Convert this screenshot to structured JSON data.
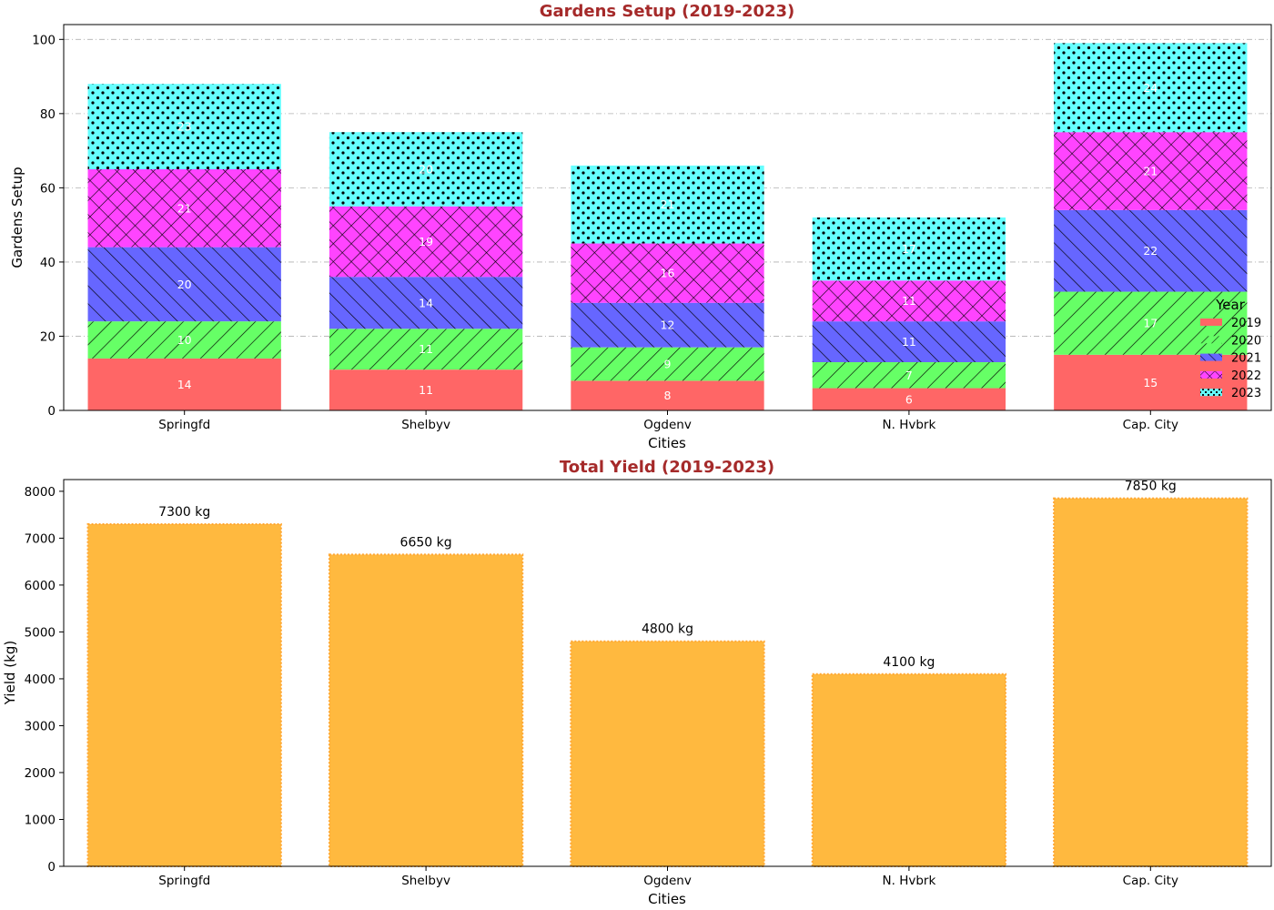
{
  "chart_data": [
    {
      "type": "bar",
      "stacked": true,
      "title": "Gardens Setup (2019-2023)",
      "xlabel": "Cities",
      "ylabel": "Gardens Setup",
      "ylim": [
        0,
        104
      ],
      "yticks": [
        0,
        20,
        40,
        60,
        80,
        100
      ],
      "grid": "y-dashdot",
      "legend": {
        "title": "Year",
        "placement": "right"
      },
      "categories": [
        "Springfd",
        "Shelbyv",
        "Ogdenv",
        "N. Hvbrk",
        "Cap. City"
      ],
      "series": [
        {
          "name": "2019",
          "color": "#ff6666",
          "hatch": "none",
          "values": [
            14,
            11,
            8,
            6,
            15
          ]
        },
        {
          "name": "2020",
          "color": "#66ff66",
          "hatch": "forward-diagonal",
          "values": [
            10,
            11,
            9,
            7,
            17
          ]
        },
        {
          "name": "2021",
          "color": "#6666ff",
          "hatch": "back-diagonal",
          "values": [
            20,
            14,
            12,
            11,
            22
          ]
        },
        {
          "name": "2022",
          "color": "#ff44ff",
          "hatch": "cross",
          "values": [
            21,
            19,
            16,
            11,
            21
          ]
        },
        {
          "name": "2023",
          "color": "#66ffff",
          "hatch": "dots",
          "values": [
            23,
            20,
            21,
            17,
            24
          ]
        }
      ]
    },
    {
      "type": "bar",
      "title": "Total Yield (2019-2023)",
      "xlabel": "Cities",
      "ylabel": "Yield (kg)",
      "ylim": [
        0,
        8250
      ],
      "yticks": [
        0,
        1000,
        2000,
        3000,
        4000,
        5000,
        6000,
        7000,
        8000
      ],
      "color": "#ffb93f",
      "edge_color": "#ffa733",
      "unit_suffix": " kg",
      "categories": [
        "Springfd",
        "Shelbyv",
        "Ogdenv",
        "N. Hvbrk",
        "Cap. City"
      ],
      "values": [
        7300,
        6650,
        4800,
        4100,
        7850
      ]
    }
  ]
}
